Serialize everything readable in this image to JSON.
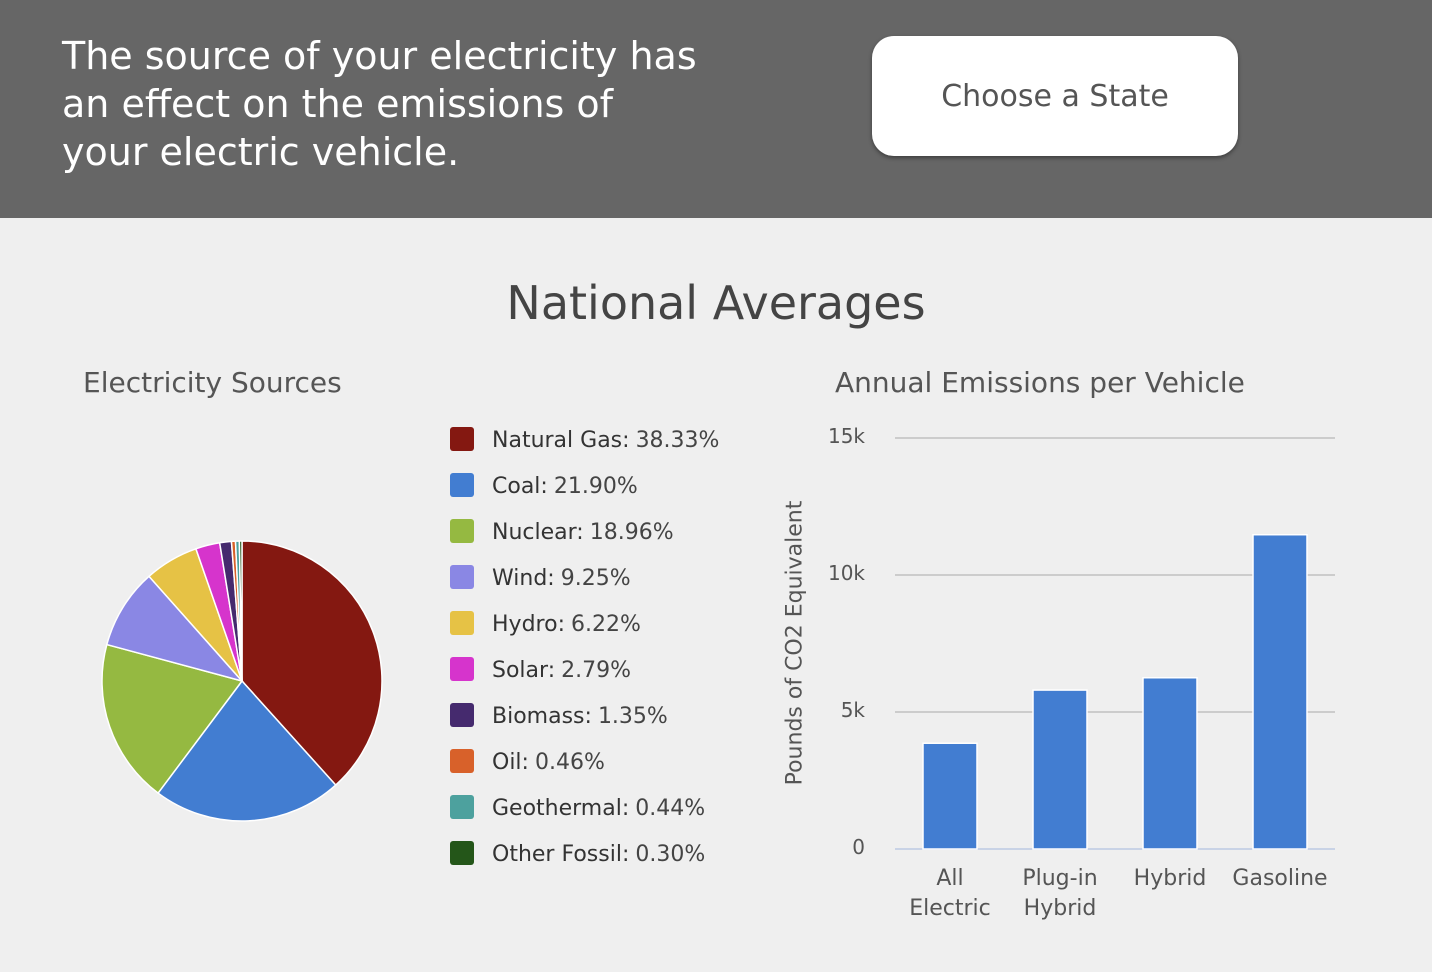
{
  "header": {
    "text": "The source of your electricity has an effect on the emissions of your electric vehicle.",
    "button": "Choose a State"
  },
  "title": "National Averages",
  "chart_data": [
    {
      "type": "pie",
      "title": "Electricity Sources",
      "categories": [
        "Natural Gas",
        "Coal",
        "Nuclear",
        "Wind",
        "Hydro",
        "Solar",
        "Biomass",
        "Oil",
        "Geothermal",
        "Other Fossil"
      ],
      "values": [
        38.33,
        21.9,
        18.96,
        9.25,
        6.22,
        2.79,
        1.35,
        0.46,
        0.44,
        0.3
      ],
      "value_labels": [
        "38.33%",
        "21.90%",
        "18.96%",
        "9.25%",
        "6.22%",
        "2.79%",
        "1.35%",
        "0.46%",
        "0.44%",
        "0.30%"
      ],
      "colors": [
        "#841811",
        "#427dd1",
        "#95b941",
        "#8a87e4",
        "#e6c245",
        "#d634cc",
        "#452a6e",
        "#d8612a",
        "#4da19e",
        "#245619"
      ],
      "legend": "right"
    },
    {
      "type": "bar",
      "title": "Annual Emissions per Vehicle",
      "y_label": "Pounds of CO2 Equivalent",
      "categories": [
        "All Electric",
        "Plug-in Hybrid",
        "Hybrid",
        "Gasoline"
      ],
      "values": [
        3860,
        5800,
        6250,
        11470
      ],
      "color": "#427dd1",
      "ylim": [
        0,
        15000
      ],
      "yticks": [
        0,
        {
          "value": 5000,
          "label": "5k"
        },
        {
          "value": 10000,
          "label": "10k"
        },
        {
          "value": 15000,
          "label": "15k"
        }
      ],
      "grid": true
    }
  ]
}
